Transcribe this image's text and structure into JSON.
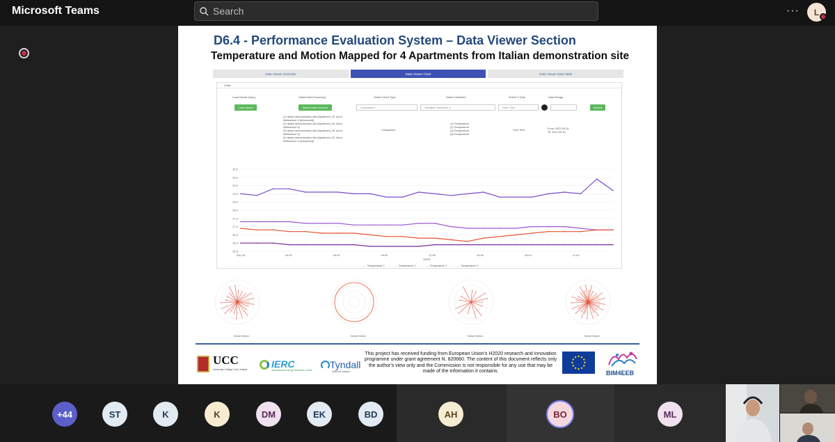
{
  "app": {
    "title": "Microsoft Teams",
    "more": "···",
    "user_initial": "L"
  },
  "search": {
    "placeholder": "Search"
  },
  "slide": {
    "title": "D6.4 - Performance Evaluation System – Data Viewer Section",
    "subtitle": "Temperature and Motion Mapped for 4 Apartments from Italian demonstration site",
    "tabs": [
      "Data Viewer Overview",
      "Data Viewer Chart",
      "Data Viewer Data Table"
    ],
    "panel_title": "Chart",
    "controls": {
      "labels": [
        "Load Saved Query",
        "Select Data Source(s)",
        "Select Chart Type",
        "Select Variables",
        "Select X-Axis",
        "Date Range"
      ],
      "load_button": "Load Query",
      "source_button": "Select Data Sources",
      "chart_type": "Comparison",
      "variables": "Variables Selected: 4",
      "x_axis": "Over Time",
      "submit": "Submit"
    },
    "sources": [
      "(1) Italian demonstration site (Apartment_32. Aeon Multisensor 6 (Advanced))",
      "(2) Italian demonstration site (Apartment_33. Aeon Multisensor 6)",
      "(3) Italian demonstration site (Apartment_30. Aeon Multisensor 6)",
      "(4) Italian demonstration site (Apartment_32. Aeon Multisensor 6 (Advanced))"
    ],
    "summary_type": "Comparison",
    "summary_vars": [
      "(1) Temperature",
      "(2) Temperature",
      "(3) Temperature",
      "(4) Temperature"
    ],
    "summary_axis": "Over Time",
    "summary_from": "From:  2021-09-15",
    "summary_to": "To:      2021-09-16",
    "legend": [
      "Temperature C",
      "Temperature C",
      "Temperature C",
      "Temperature C"
    ],
    "polar_legend": [
      "Motion Motion",
      "Motion Motion",
      "Motion Motion",
      "Motion Motion"
    ],
    "footer": {
      "ucc": "UCC",
      "ucc_sub": "University College Cork, Ireland",
      "ierc": "IERC",
      "ierc_sub": "International Energy Research Centre",
      "tyndall": "Tyndall",
      "tyndall_sub": "National Institute",
      "funding": "This project has received funding from European Union's H2020 research and innovation programme under grant agreement N. 820660. The content of this document reflects only the author's view only and the Commission is not responsible for any use that may be made of the information it contains.",
      "bim": "BIM4EEB"
    }
  },
  "chart_data": {
    "type": "line",
    "xlabel": "DATE",
    "ylabel": "",
    "x_ticks": [
      "Sep 15",
      "03:00",
      "06:00",
      "09:00",
      "12:00",
      "15:00",
      "18:00",
      "21:00"
    ],
    "y_ticks": [
      25.5,
      26.0,
      26.5,
      27.0,
      27.5,
      28.0,
      28.5,
      29.0,
      29.5,
      30.0,
      30.5
    ],
    "ylim": [
      25.5,
      30.5
    ],
    "x": [
      0,
      1,
      2,
      3,
      4,
      5,
      6,
      7,
      8,
      9,
      10,
      11,
      12,
      13,
      14,
      15,
      16,
      17,
      18,
      19,
      20,
      21,
      22,
      23
    ],
    "series": [
      {
        "name": "Temperature C",
        "color": "#7b4fc9",
        "values": [
          29.0,
          28.9,
          29.3,
          29.3,
          29.1,
          29.1,
          29.1,
          29.0,
          29.0,
          28.8,
          28.8,
          29.1,
          29.0,
          28.9,
          29.0,
          29.1,
          28.8,
          28.8,
          28.8,
          29.0,
          29.1,
          29.0,
          29.9,
          29.2
        ]
      },
      {
        "name": "Temperature C",
        "color": "#9b59d0",
        "values": [
          27.3,
          27.3,
          27.3,
          27.3,
          27.2,
          27.2,
          27.2,
          27.1,
          27.1,
          27.1,
          27.1,
          27.2,
          27.2,
          27.0,
          26.9,
          26.9,
          26.9,
          26.9,
          27.0,
          27.0,
          27.0,
          26.9,
          26.8,
          26.8
        ]
      },
      {
        "name": "Temperature C",
        "color": "#e0552f",
        "values": [
          26.9,
          26.8,
          26.8,
          26.7,
          26.7,
          26.6,
          26.6,
          26.6,
          26.5,
          26.4,
          26.4,
          26.3,
          26.3,
          26.2,
          26.1,
          26.3,
          26.4,
          26.5,
          26.6,
          26.7,
          26.7,
          26.7,
          26.8,
          26.8
        ]
      },
      {
        "name": "Temperature C",
        "color": "#7a2b9a",
        "values": [
          26.0,
          26.0,
          26.0,
          25.9,
          25.9,
          25.9,
          25.9,
          25.9,
          25.8,
          25.8,
          25.8,
          25.8,
          25.9,
          25.9,
          25.9,
          25.9,
          25.9,
          25.9,
          25.9,
          25.9,
          25.9,
          25.9,
          25.9,
          25.9
        ]
      }
    ]
  },
  "participants": [
    {
      "initials": "+44",
      "bg": "#5b5fc7",
      "fg": "#ffffff"
    },
    {
      "initials": "ST",
      "bg": "#e2eaf2",
      "fg": "#1f3a5a"
    },
    {
      "initials": "K",
      "bg": "#e2eaf2",
      "fg": "#1f3a5a"
    },
    {
      "initials": "K",
      "bg": "#f6ecd2",
      "fg": "#5a4220"
    },
    {
      "initials": "DM",
      "bg": "#f0e1ef",
      "fg": "#5a2a57"
    },
    {
      "initials": "EK",
      "bg": "#e2eaf2",
      "fg": "#1f3a5a"
    },
    {
      "initials": "BD",
      "bg": "#e2eaf2",
      "fg": "#1f3a5a"
    },
    {
      "initials": "AH",
      "bg": "#f6ecd2",
      "fg": "#5a4220"
    },
    {
      "initials": "BO",
      "bg": "#f4d8de",
      "fg": "#7a2336"
    },
    {
      "initials": "ML",
      "bg": "#f0e1ef",
      "fg": "#5a2a57"
    }
  ]
}
